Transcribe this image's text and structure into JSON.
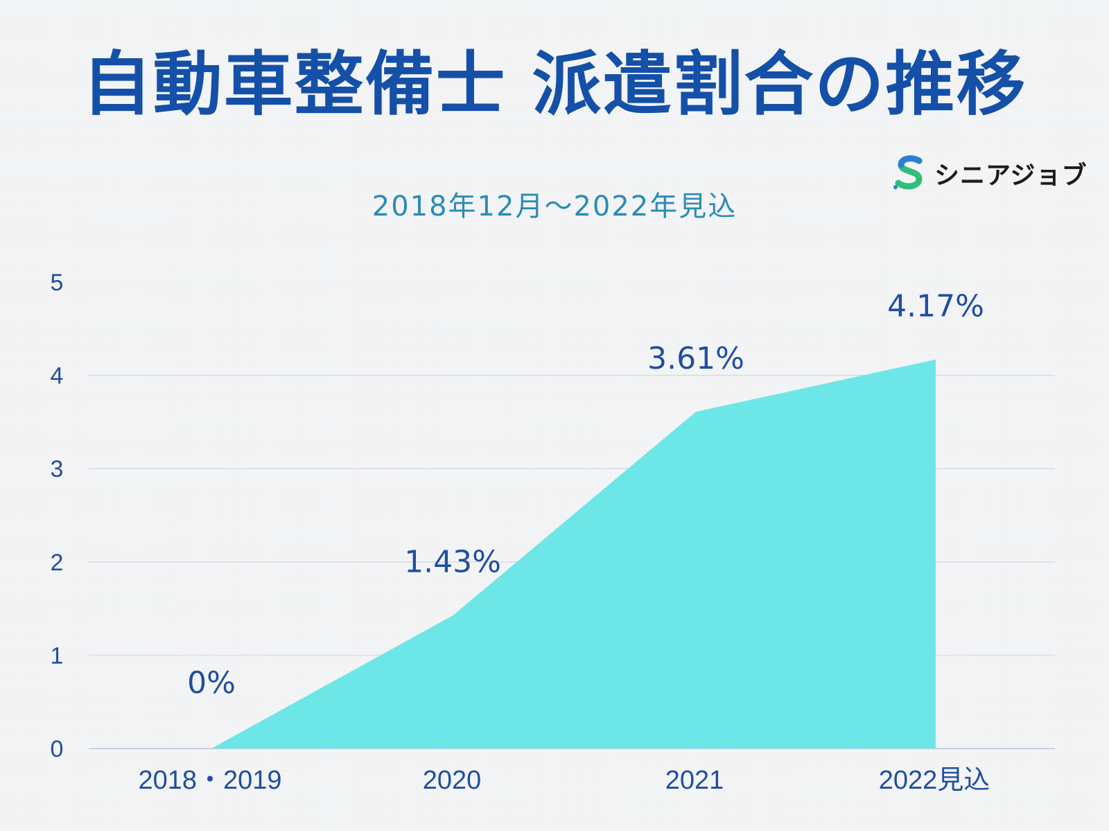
{
  "title": "自動車整備士 派遣割合の推移",
  "subtitle": "2018年12月～2022年見込",
  "logo": {
    "text": "シニアジョブ",
    "icon": "s-logo-icon"
  },
  "colors": {
    "area": "#6de6e8",
    "title": "#1450a8",
    "subtitle": "#2b8bb5",
    "axis_text": "#1f4ea0",
    "grid": "#d6dbea"
  },
  "chart_data": {
    "type": "area",
    "categories": [
      "2018・2019",
      "2020",
      "2021",
      "2022見込"
    ],
    "values": [
      0,
      1.43,
      3.61,
      4.17
    ],
    "data_labels": [
      "0%",
      "1.43%",
      "3.61%",
      "4.17%"
    ],
    "ylim": [
      0,
      5
    ],
    "yticks": [
      "0",
      "1",
      "2",
      "3",
      "4",
      "5"
    ],
    "grid": true,
    "legend": "none"
  }
}
